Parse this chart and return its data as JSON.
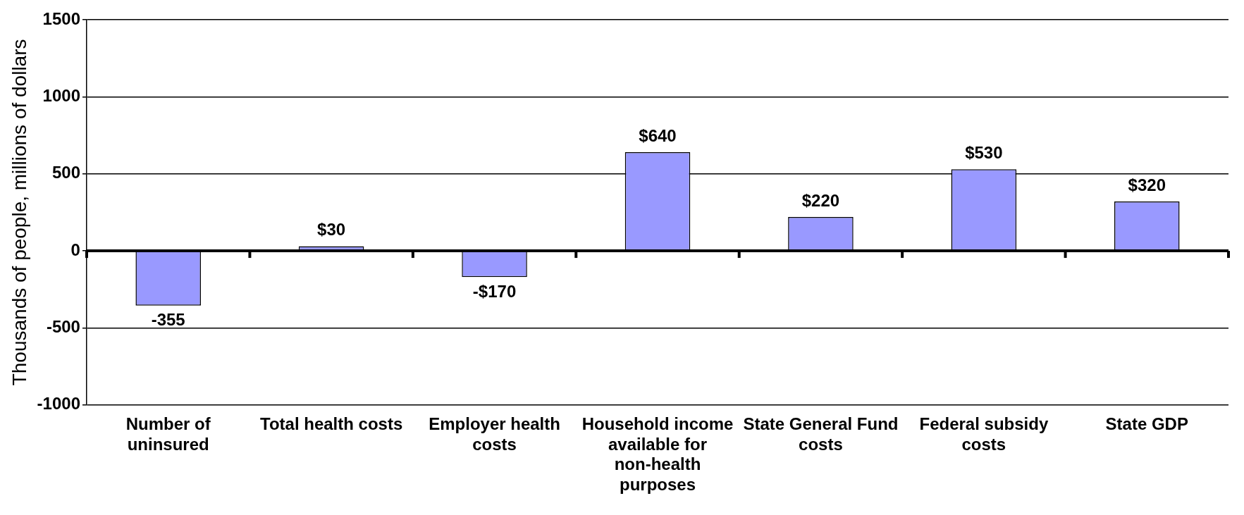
{
  "chart_data": {
    "type": "bar",
    "ylabel": "Thousands of people, millions of dollars",
    "categories": [
      "Number of uninsured",
      "Total health costs",
      "Employer health costs",
      "Household income available for non-health purposes",
      "State General Fund costs",
      "Federal subsidy costs",
      "State GDP"
    ],
    "values": [
      -355,
      30,
      -170,
      640,
      220,
      530,
      320
    ],
    "value_labels": [
      "-355",
      "$30",
      "-$170",
      "$640",
      "$220",
      "$530",
      "$320"
    ],
    "color": "#9999ff",
    "ylim": [
      -1000,
      1500
    ],
    "yticks": [
      -1000,
      -500,
      0,
      500,
      1000,
      1500
    ],
    "grid": "y"
  }
}
